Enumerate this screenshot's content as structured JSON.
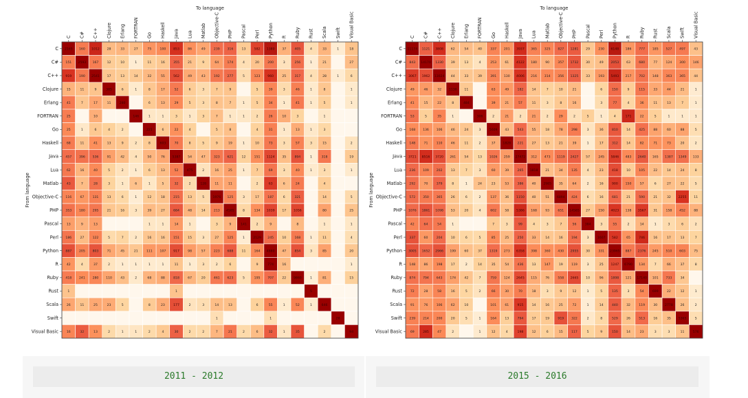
{
  "captions": [
    "2011 - 2012",
    "2015 - 2016"
  ],
  "colors": {
    "panel_bg": "#f6f6f6",
    "caption_text": "#2a7a2a"
  },
  "chart_data": [
    {
      "type": "heatmap",
      "title": "To language",
      "xlabel": "To language",
      "ylabel": "From language",
      "languages": [
        "C",
        "C#",
        "C++",
        "Clojure",
        "Erlang",
        "FORTRAN",
        "Go",
        "Haskell",
        "Java",
        "Lua",
        "Matlab",
        "Objective-C",
        "PHP",
        "Pascal",
        "Perl",
        "Python",
        "R",
        "Ruby",
        "Rust",
        "Scala",
        "Swift",
        "Visual Basic"
      ],
      "values": [
        [
          2165,
          160,
          1012,
          28,
          33,
          27,
          75,
          100,
          853,
          86,
          49,
          239,
          316,
          13,
          582,
          1380,
          37,
          405,
          4,
          33,
          1,
          18
        ],
        [
          151,
          2593,
          167,
          12,
          10,
          1,
          11,
          16,
          355,
          21,
          9,
          64,
          174,
          4,
          20,
          200,
          3,
          256,
          1,
          21,
          null,
          27
        ],
        [
          919,
          190,
          2541,
          17,
          13,
          14,
          32,
          55,
          562,
          49,
          43,
          192,
          277,
          5,
          123,
          960,
          25,
          317,
          4,
          28,
          1,
          6
        ],
        [
          15,
          11,
          9,
          385,
          6,
          1,
          8,
          17,
          52,
          6,
          3,
          7,
          9,
          null,
          5,
          39,
          3,
          46,
          1,
          8,
          null,
          1
        ],
        [
          41,
          7,
          17,
          11,
          280,
          null,
          6,
          13,
          29,
          5,
          3,
          8,
          7,
          1,
          5,
          34,
          1,
          41,
          1,
          5,
          null,
          1
        ],
        [
          25,
          null,
          10,
          null,
          null,
          146,
          1,
          1,
          3,
          1,
          3,
          7,
          1,
          1,
          2,
          26,
          10,
          3,
          null,
          1,
          null,
          null
        ],
        [
          25,
          1,
          6,
          4,
          2,
          null,
          221,
          6,
          22,
          4,
          null,
          5,
          8,
          null,
          4,
          31,
          1,
          13,
          1,
          3,
          null,
          null
        ],
        [
          68,
          11,
          41,
          13,
          9,
          2,
          8,
          603,
          70,
          8,
          5,
          9,
          19,
          1,
          10,
          73,
          3,
          57,
          3,
          15,
          null,
          2
        ],
        [
          457,
          396,
          536,
          91,
          42,
          4,
          50,
          76,
          5387,
          54,
          47,
          323,
          621,
          12,
          151,
          1124,
          35,
          894,
          1,
          318,
          null,
          19
        ],
        [
          62,
          16,
          40,
          5,
          2,
          1,
          6,
          13,
          52,
          475,
          2,
          16,
          25,
          1,
          7,
          69,
          3,
          40,
          1,
          3,
          null,
          1
        ],
        [
          43,
          7,
          28,
          3,
          1,
          6,
          1,
          5,
          32,
          2,
          128,
          11,
          11,
          null,
          2,
          63,
          6,
          24,
          null,
          4,
          null,
          null
        ],
        [
          116,
          67,
          131,
          13,
          6,
          1,
          12,
          18,
          215,
          13,
          5,
          1976,
          125,
          3,
          17,
          187,
          6,
          321,
          null,
          14,
          null,
          5
        ],
        [
          353,
          180,
          295,
          21,
          16,
          3,
          39,
          27,
          684,
          48,
          14,
          213,
          4585,
          8,
          134,
          1039,
          17,
          1056,
          null,
          80,
          null,
          25
        ],
        [
          13,
          9,
          13,
          null,
          null,
          null,
          1,
          1,
          14,
          1,
          null,
          3,
          9,
          141,
          2,
          9,
          null,
          8,
          null,
          1,
          null,
          1
        ],
        [
          186,
          27,
          122,
          5,
          7,
          2,
          16,
          16,
          151,
          15,
          3,
          27,
          125,
          1,
          2129,
          245,
          10,
          168,
          1,
          11,
          null,
          4
        ],
        [
          887,
          205,
          803,
          71,
          45,
          21,
          111,
          107,
          917,
          98,
          57,
          223,
          688,
          11,
          164,
          4880,
          47,
          854,
          3,
          85,
          null,
          20
        ],
        [
          42,
          4,
          37,
          2,
          1,
          1,
          1,
          1,
          11,
          1,
          3,
          2,
          6,
          null,
          9,
          774,
          16,
          null,
          null,
          null,
          null,
          1
        ],
        [
          418,
          241,
          280,
          110,
          43,
          2,
          68,
          88,
          818,
          67,
          20,
          461,
          623,
          5,
          195,
          707,
          22,
          9860,
          1,
          81,
          null,
          15
        ],
        [
          1,
          null,
          null,
          null,
          null,
          null,
          null,
          null,
          1,
          null,
          null,
          null,
          null,
          null,
          null,
          null,
          null,
          null,
          5,
          null,
          null,
          null
        ],
        [
          26,
          11,
          25,
          23,
          5,
          null,
          8,
          23,
          177,
          2,
          3,
          14,
          13,
          null,
          6,
          55,
          1,
          52,
          1,
          646,
          null,
          null
        ],
        [
          null,
          null,
          null,
          null,
          null,
          null,
          null,
          null,
          null,
          null,
          null,
          1,
          null,
          null,
          null,
          1,
          null,
          null,
          null,
          null,
          28,
          null
        ],
        [
          16,
          32,
          13,
          2,
          1,
          1,
          2,
          4,
          30,
          2,
          2,
          7,
          21,
          2,
          6,
          32,
          1,
          35,
          null,
          2,
          null,
          94
        ]
      ]
    },
    {
      "type": "heatmap",
      "title": "To language",
      "xlabel": "To language",
      "ylabel": "From language",
      "languages": [
        "C",
        "C#",
        "C++",
        "Clojure",
        "Erlang",
        "FORTRAN",
        "Go",
        "Haskell",
        "Java",
        "Lua",
        "Matlab",
        "Objective-C",
        "PHP",
        "Pascal",
        "Perl",
        "Python",
        "R",
        "Ruby",
        "Rust",
        "Scala",
        "Swift",
        "Visual Basic"
      ],
      "values": [
        [
          11174,
          1121,
          3808,
          62,
          54,
          40,
          337,
          201,
          3937,
          365,
          325,
          827,
          1281,
          29,
          230,
          6148,
          186,
          777,
          185,
          527,
          497,
          43
        ],
        [
          843,
          14170,
          1330,
          39,
          13,
          4,
          253,
          61,
          4122,
          180,
          90,
          357,
          1732,
          30,
          49,
          2053,
          63,
          680,
          77,
          124,
          300,
          146
        ],
        [
          3067,
          1962,
          13024,
          44,
          33,
          39,
          391,
          130,
          4006,
          216,
          314,
          356,
          1325,
          33,
          193,
          5493,
          217,
          702,
          148,
          363,
          365,
          44
        ],
        [
          49,
          46,
          32,
          1130,
          11,
          null,
          63,
          49,
          182,
          14,
          7,
          10,
          21,
          null,
          6,
          150,
          9,
          115,
          33,
          44,
          21,
          1
        ],
        [
          41,
          15,
          22,
          8,
          484,
          null,
          39,
          21,
          57,
          11,
          3,
          8,
          16,
          null,
          3,
          77,
          4,
          36,
          11,
          13,
          7,
          1
        ],
        [
          53,
          5,
          35,
          1,
          null,
          306,
          2,
          21,
          2,
          21,
          2,
          29,
          2,
          5,
          1,
          4,
          171,
          22,
          5,
          1,
          1,
          1
        ],
        [
          168,
          136,
          106,
          46,
          24,
          3,
          5609,
          43,
          543,
          55,
          18,
          78,
          298,
          3,
          36,
          810,
          14,
          425,
          88,
          60,
          88,
          5
        ],
        [
          148,
          71,
          110,
          46,
          11,
          2,
          37,
          1828,
          221,
          27,
          13,
          21,
          39,
          1,
          17,
          312,
          14,
          82,
          71,
          73,
          20,
          2
        ],
        [
          3721,
          8516,
          3720,
          261,
          54,
          13,
          1026,
          259,
          27472,
          312,
          473,
          1119,
          2427,
          57,
          245,
          5846,
          483,
          2640,
          165,
          1387,
          1349,
          133
        ],
        [
          236,
          109,
          202,
          13,
          7,
          3,
          60,
          39,
          265,
          1818,
          21,
          34,
          135,
          4,
          23,
          418,
          10,
          105,
          22,
          14,
          24,
          8
        ],
        [
          292,
          70,
          379,
          8,
          1,
          24,
          23,
          53,
          386,
          40,
          2985,
          35,
          64,
          2,
          16,
          900,
          150,
          57,
          6,
          27,
          22,
          5
        ],
        [
          572,
          350,
          365,
          26,
          6,
          2,
          137,
          36,
          1150,
          40,
          51,
          6894,
          424,
          6,
          16,
          681,
          21,
          590,
          21,
          32,
          2255,
          11
        ],
        [
          1076,
          1861,
          1098,
          53,
          20,
          4,
          602,
          58,
          5386,
          168,
          93,
          651,
          14585,
          27,
          150,
          4023,
          138,
          3567,
          31,
          158,
          452,
          88
        ],
        [
          42,
          64,
          54,
          1,
          null,
          null,
          7,
          3,
          99,
          4,
          3,
          7,
          56,
          384,
          3,
          55,
          2,
          14,
          1,
          3,
          6,
          2
        ],
        [
          337,
          60,
          204,
          10,
          6,
          5,
          85,
          25,
          250,
          33,
          14,
          16,
          194,
          3,
          1607,
          582,
          65,
          746,
          16,
          17,
          13,
          7
        ],
        [
          3005,
          1652,
          2966,
          199,
          60,
          37,
          1319,
          273,
          6358,
          398,
          360,
          430,
          2955,
          30,
          331,
          23965,
          887,
          2376,
          245,
          510,
          603,
          75
        ],
        [
          148,
          86,
          198,
          17,
          2,
          14,
          35,
          54,
          436,
          13,
          147,
          19,
          119,
          3,
          25,
          1247,
          6790,
          134,
          7,
          66,
          37,
          8
        ],
        [
          874,
          794,
          643,
          174,
          42,
          7,
          759,
          124,
          2645,
          115,
          76,
          558,
          2665,
          10,
          96,
          1898,
          121,
          17140,
          101,
          733,
          34,
          null
        ],
        [
          72,
          28,
          58,
          16,
          5,
          2,
          66,
          30,
          70,
          18,
          3,
          9,
          12,
          1,
          5,
          135,
          3,
          54,
          699,
          22,
          12,
          1
        ],
        [
          91,
          76,
          106,
          62,
          10,
          null,
          101,
          61,
          915,
          14,
          16,
          25,
          72,
          1,
          14,
          440,
          32,
          119,
          30,
          2778,
          26,
          2
        ],
        [
          239,
          214,
          200,
          20,
          5,
          1,
          164,
          13,
          794,
          17,
          19,
          919,
          322,
          2,
          8,
          529,
          26,
          513,
          16,
          35,
          5365,
          5
        ],
        [
          69,
          285,
          47,
          2,
          null,
          1,
          12,
          4,
          198,
          12,
          6,
          15,
          117,
          5,
          9,
          150,
          14,
          23,
          3,
          3,
          11,
          576
        ]
      ]
    }
  ]
}
